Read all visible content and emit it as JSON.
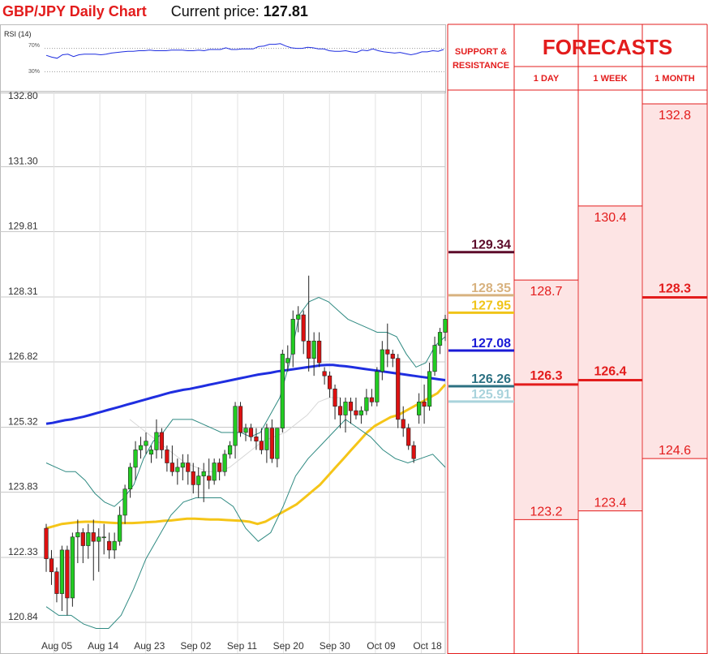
{
  "header": {
    "pair_title": "GBP/JPY Daily Chart",
    "price_label": "Current price:",
    "price_value": "127.81"
  },
  "rsi": {
    "label": "RSI (14)",
    "level_high": "70%",
    "level_low": "30%",
    "values": [
      58,
      55,
      53,
      59,
      60,
      56,
      59,
      60,
      60,
      60,
      59,
      60,
      62,
      63,
      64,
      65,
      65,
      66,
      66,
      67,
      66,
      66,
      66,
      67,
      67,
      67,
      66,
      66,
      67,
      66,
      68,
      68,
      68,
      71,
      68,
      68,
      69,
      69,
      69,
      73,
      74,
      77,
      77,
      78,
      74,
      71,
      70,
      70,
      72,
      71,
      69,
      69,
      66,
      65,
      65,
      66,
      64,
      63,
      67,
      66,
      69,
      66,
      64,
      63,
      62,
      63,
      61,
      59,
      61,
      64,
      64,
      66,
      65,
      68
    ]
  },
  "support_resistance": {
    "header_line1": "SUPPORT &",
    "header_line2": "RESISTANCE",
    "levels": [
      {
        "value": 129.34,
        "label": "129.34",
        "color": "#5c0b2a"
      },
      {
        "value": 128.35,
        "label": "128.35",
        "color": "#d8b27f"
      },
      {
        "value": 127.95,
        "label": "127.95",
        "color": "#f0c419"
      },
      {
        "value": 127.08,
        "label": "127.08",
        "color": "#1a1ad6"
      },
      {
        "value": 126.26,
        "label": "126.26",
        "color": "#2c7182"
      },
      {
        "value": 125.91,
        "label": "125.91",
        "color": "#a9d3dc"
      }
    ]
  },
  "forecasts": {
    "title": "FORECASTS",
    "columns": [
      {
        "label": "1 DAY",
        "high": 128.7,
        "high_label": "128.7",
        "mid": 126.3,
        "mid_label": "126.3",
        "low": 123.2,
        "low_label": "123.2"
      },
      {
        "label": "1 WEEK",
        "high": 130.4,
        "high_label": "130.4",
        "mid": 126.4,
        "mid_label": "126.4",
        "low": 123.4,
        "low_label": "123.4"
      },
      {
        "label": "1 MONTH",
        "high": 132.8,
        "high_label": "132.8",
        "mid": 128.3,
        "mid_label": "128.3",
        "low": 124.6,
        "low_label": "124.6"
      }
    ]
  },
  "colors": {
    "accent_red": "#e31c1c",
    "forecast_fill": "#fde4e4",
    "grid": "#c8c8c8",
    "candle_up": "#22cc22",
    "candle_down": "#dd1111",
    "ma_fast": "#1f2ee0",
    "ma_slow": "#f5c518",
    "bollinger": "#2f8a82",
    "ma_thin": "#d8d8d8"
  },
  "chart_data": {
    "type": "candlestick",
    "title": "GBP/JPY Daily Chart",
    "ylim": [
      120.84,
      132.8
    ],
    "y_ticks": [
      "132.80",
      "131.30",
      "129.81",
      "128.31",
      "126.82",
      "125.32",
      "123.83",
      "122.33",
      "120.84"
    ],
    "x_tick_labels": [
      "Aug 05",
      "Aug 14",
      "Aug 23",
      "Sep 02",
      "Sep 11",
      "Sep 20",
      "Sep 30",
      "Oct 09",
      "Oct 18"
    ],
    "grid": true,
    "series": [
      {
        "name": "",
        "type": "candle",
        "ohlc": [
          [
            123.0,
            123.1,
            122.0,
            122.3
          ],
          [
            122.3,
            122.5,
            121.7,
            122.0
          ],
          [
            122.0,
            122.1,
            121.3,
            121.5
          ],
          [
            121.5,
            122.6,
            121.1,
            122.5
          ],
          [
            122.5,
            122.6,
            121.0,
            121.4
          ],
          [
            121.4,
            122.9,
            121.2,
            122.8
          ],
          [
            122.8,
            123.2,
            122.2,
            122.9
          ],
          [
            122.9,
            123.0,
            122.2,
            122.6
          ],
          [
            122.6,
            123.1,
            122.3,
            122.9
          ],
          [
            122.9,
            123.2,
            121.8,
            122.7
          ],
          [
            122.7,
            123.0,
            122.0,
            122.8
          ],
          [
            122.8,
            123.1,
            122.4,
            122.8
          ],
          [
            122.7,
            122.9,
            122.3,
            122.5
          ],
          [
            122.5,
            122.9,
            122.3,
            122.7
          ],
          [
            122.7,
            123.5,
            122.6,
            123.3
          ],
          [
            123.3,
            124.0,
            123.1,
            123.9
          ],
          [
            123.9,
            124.5,
            123.7,
            124.4
          ],
          [
            124.4,
            125.0,
            124.1,
            124.8
          ],
          [
            124.8,
            125.1,
            124.6,
            124.9
          ],
          [
            124.9,
            125.2,
            124.7,
            125.0
          ],
          [
            124.7,
            124.9,
            124.5,
            124.8
          ],
          [
            124.8,
            125.5,
            124.6,
            125.2
          ],
          [
            125.2,
            125.3,
            124.6,
            124.8
          ],
          [
            124.8,
            124.9,
            124.3,
            124.5
          ],
          [
            124.5,
            124.9,
            124.2,
            124.3
          ],
          [
            124.3,
            124.6,
            124.0,
            124.4
          ],
          [
            124.4,
            124.7,
            124.1,
            124.5
          ],
          [
            124.5,
            124.7,
            124.0,
            124.3
          ],
          [
            124.3,
            124.5,
            123.8,
            124.0
          ],
          [
            124.0,
            124.4,
            123.7,
            124.2
          ],
          [
            124.2,
            124.5,
            123.6,
            124.3
          ],
          [
            124.2,
            124.6,
            123.9,
            124.1
          ],
          [
            124.1,
            124.6,
            124.0,
            124.5
          ],
          [
            124.5,
            124.6,
            124.1,
            124.3
          ],
          [
            124.3,
            124.8,
            124.2,
            124.7
          ],
          [
            124.7,
            125.0,
            124.6,
            124.9
          ],
          [
            124.9,
            125.9,
            124.6,
            125.8
          ],
          [
            125.8,
            125.9,
            125.1,
            125.2
          ],
          [
            125.2,
            125.4,
            125.0,
            125.3
          ],
          [
            125.3,
            125.4,
            125.0,
            125.1
          ],
          [
            125.1,
            125.3,
            124.8,
            125.0
          ],
          [
            125.0,
            125.3,
            124.7,
            124.8
          ],
          [
            124.8,
            125.4,
            124.5,
            125.3
          ],
          [
            125.3,
            125.5,
            124.5,
            124.6
          ],
          [
            124.6,
            125.3,
            124.4,
            125.3
          ],
          [
            125.3,
            127.1,
            125.2,
            127.0
          ],
          [
            126.8,
            127.2,
            126.6,
            126.9
          ],
          [
            127.0,
            128.0,
            126.7,
            127.8
          ],
          [
            127.8,
            128.1,
            127.5,
            127.9
          ],
          [
            127.9,
            128.0,
            127.0,
            127.3
          ],
          [
            127.3,
            128.8,
            126.6,
            126.9
          ],
          [
            126.9,
            127.5,
            126.5,
            127.3
          ],
          [
            127.3,
            127.5,
            126.7,
            126.8
          ],
          [
            126.6,
            126.7,
            126.3,
            126.5
          ],
          [
            126.5,
            126.6,
            126.0,
            126.2
          ],
          [
            126.2,
            126.3,
            125.5,
            125.8
          ],
          [
            125.8,
            126.0,
            125.3,
            125.6
          ],
          [
            125.6,
            126.0,
            125.2,
            125.9
          ],
          [
            125.9,
            126.0,
            125.4,
            125.7
          ],
          [
            125.7,
            126.0,
            125.5,
            125.6
          ],
          [
            125.6,
            125.8,
            125.4,
            125.7
          ],
          [
            125.7,
            126.2,
            125.6,
            126.0
          ],
          [
            126.0,
            126.2,
            125.8,
            125.9
          ],
          [
            125.9,
            126.7,
            125.8,
            126.6
          ],
          [
            126.6,
            127.3,
            126.4,
            127.1
          ],
          [
            127.1,
            127.7,
            126.7,
            127.0
          ],
          [
            127.0,
            127.1,
            126.7,
            126.9
          ],
          [
            126.9,
            127.0,
            125.3,
            125.5
          ],
          [
            125.5,
            125.8,
            125.1,
            125.3
          ],
          [
            125.3,
            125.4,
            124.8,
            124.9
          ],
          [
            124.9,
            125.0,
            124.5,
            124.6
          ],
          [
            125.6,
            126.1,
            125.4,
            125.9
          ],
          [
            125.9,
            126.3,
            125.4,
            125.8
          ],
          [
            125.8,
            126.8,
            125.7,
            126.6
          ],
          [
            126.6,
            127.4,
            126.5,
            127.2
          ],
          [
            127.2,
            127.6,
            127.0,
            127.5
          ],
          [
            127.5,
            127.9,
            127.3,
            127.8
          ]
        ]
      },
      {
        "name": "",
        "type": "line",
        "color": "#1f2ee0",
        "values": [
          125.4,
          125.42,
          125.45,
          125.48,
          125.5,
          125.53,
          125.56,
          125.6,
          125.64,
          125.68,
          125.72,
          125.76,
          125.8,
          125.84,
          125.88,
          125.92,
          125.96,
          126.0,
          126.04,
          126.08,
          126.12,
          126.15,
          126.18,
          126.2,
          126.23,
          126.26,
          126.29,
          126.32,
          126.35,
          126.38,
          126.41,
          126.44,
          126.47,
          126.5,
          126.53,
          126.55,
          126.57,
          126.6,
          126.62,
          126.64,
          126.66,
          126.68,
          126.7,
          126.72,
          126.74,
          126.75,
          126.75,
          126.73,
          126.72,
          126.7,
          126.68,
          126.66,
          126.64,
          126.62,
          126.6,
          126.58,
          126.56,
          126.54,
          126.52,
          126.5,
          126.48,
          126.46,
          126.44,
          126.42,
          126.4
        ]
      },
      {
        "name": "",
        "type": "line",
        "color": "#f5c518",
        "values": [
          123.0,
          123.05,
          123.1,
          123.12,
          123.14,
          123.15,
          123.15,
          123.14,
          123.13,
          123.12,
          123.12,
          123.12,
          123.13,
          123.14,
          123.15,
          123.17,
          123.18,
          123.2,
          123.22,
          123.22,
          123.21,
          123.2,
          123.2,
          123.19,
          123.18,
          123.17,
          123.15,
          123.1,
          123.15,
          123.25,
          123.35,
          123.45,
          123.55,
          123.7,
          123.85,
          124.0,
          124.2,
          124.4,
          124.6,
          124.8,
          125.0,
          125.2,
          125.35,
          125.45,
          125.55,
          125.6,
          125.7,
          125.8,
          125.9,
          126.0,
          126.1,
          126.3
        ]
      },
      {
        "name": "",
        "type": "line",
        "color": "#2f8a82",
        "values": [
          124.5,
          124.4,
          124.3,
          124.3,
          124.1,
          123.8,
          123.6,
          123.5,
          123.7,
          124.0,
          124.6,
          125.0,
          125.2,
          125.5,
          125.5,
          125.5,
          125.4,
          125.3,
          125.2,
          125.2,
          125.2,
          125.1,
          125.2,
          125.6,
          126.0,
          126.8,
          127.9,
          128.2,
          128.3,
          128.2,
          128.0,
          127.8,
          127.7,
          127.6,
          127.5,
          127.5,
          127.4,
          127.0,
          126.7,
          126.8,
          127.2,
          127.4
        ]
      },
      {
        "name": "",
        "type": "line",
        "color": "#2f8a82",
        "values": [
          121.2,
          121.0,
          121.0,
          120.8,
          120.7,
          120.7,
          121.0,
          121.6,
          122.3,
          122.8,
          123.3,
          123.6,
          123.7,
          123.7,
          123.7,
          123.5,
          123.0,
          122.7,
          122.9,
          123.5,
          124.2,
          124.6,
          124.9,
          125.2,
          125.5,
          125.3,
          125.1,
          124.8,
          124.6,
          124.5,
          124.6,
          124.7,
          124.4
        ]
      }
    ]
  }
}
